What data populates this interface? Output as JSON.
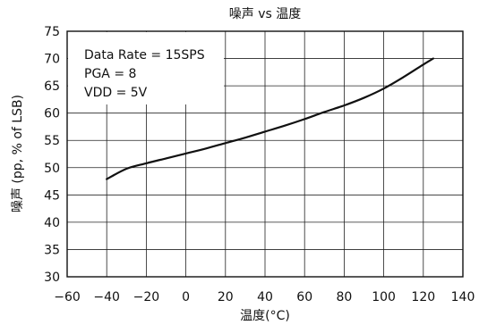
{
  "chart_data": {
    "type": "line",
    "title": "噪声 vs 温度",
    "xlabel": "温度(°C)",
    "ylabel": "噪声 (pp, % of LSB)",
    "xlim": [
      -60,
      140
    ],
    "ylim": [
      30,
      75
    ],
    "x_ticks": [
      -60,
      -40,
      -20,
      0,
      20,
      40,
      60,
      80,
      100,
      120,
      140
    ],
    "y_ticks": [
      30,
      35,
      40,
      45,
      50,
      55,
      60,
      65,
      70,
      75
    ],
    "x_tick_labels": [
      "−60",
      "−40",
      "−20",
      "0",
      "20",
      "40",
      "60",
      "80",
      "100",
      "120",
      "140"
    ],
    "y_tick_labels": [
      "30",
      "35",
      "40",
      "45",
      "50",
      "55",
      "60",
      "65",
      "70",
      "75"
    ],
    "grid": true,
    "legend": null,
    "annotations": [
      "Data Rate = 15SPS",
      "PGA = 8",
      "VDD = 5V"
    ],
    "series": [
      {
        "color": "#111111",
        "x": [
          -40,
          -30,
          -20,
          -10,
          0,
          10,
          20,
          30,
          40,
          50,
          60,
          70,
          80,
          90,
          100,
          110,
          120,
          125
        ],
        "y": [
          47.9,
          49.8,
          50.8,
          51.7,
          52.6,
          53.5,
          54.5,
          55.5,
          56.6,
          57.7,
          58.9,
          60.2,
          61.4,
          62.8,
          64.5,
          66.6,
          68.9,
          70.0
        ]
      }
    ]
  }
}
